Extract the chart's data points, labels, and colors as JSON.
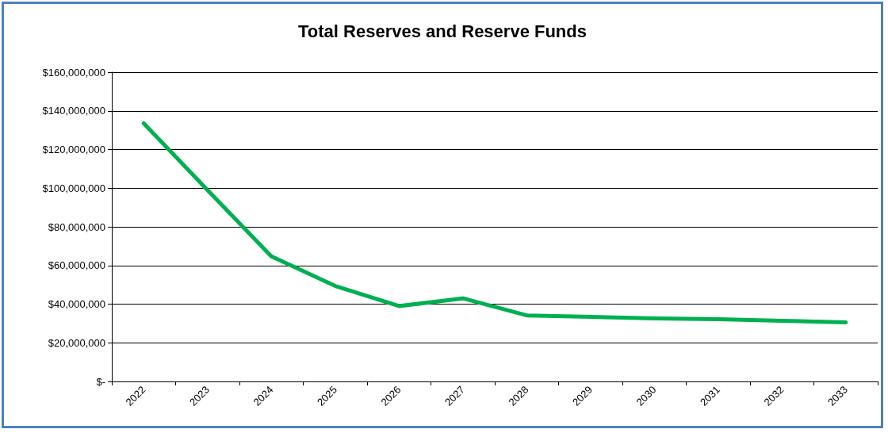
{
  "chart_data": {
    "type": "line",
    "title": "Total Reserves and Reserve Funds",
    "categories": [
      "2022",
      "2023",
      "2024",
      "2025",
      "2026",
      "2027",
      "2028",
      "2029",
      "2030",
      "2031",
      "2032",
      "2033"
    ],
    "series": [
      {
        "color": "#00b050",
        "values": [
          133500000,
          99000000,
          64700000,
          49400000,
          39000000,
          43000000,
          34200000,
          33400000,
          32600000,
          32200000,
          31400000,
          30600000
        ]
      }
    ],
    "ylim": [
      0,
      160000000
    ],
    "yticks": [
      {
        "value": 0,
        "label": "$-"
      },
      {
        "value": 20000000,
        "label": "$20,000,000"
      },
      {
        "value": 40000000,
        "label": "$40,000,000"
      },
      {
        "value": 60000000,
        "label": "$60,000,000"
      },
      {
        "value": 80000000,
        "label": "$80,000,000"
      },
      {
        "value": 100000000,
        "label": "$100,000,000"
      },
      {
        "value": 120000000,
        "label": "$120,000,000"
      },
      {
        "value": 140000000,
        "label": "$140,000,000"
      },
      {
        "value": 160000000,
        "label": "$160,000,000"
      }
    ],
    "grid": "y",
    "marker": "none",
    "line_style": "solid"
  }
}
